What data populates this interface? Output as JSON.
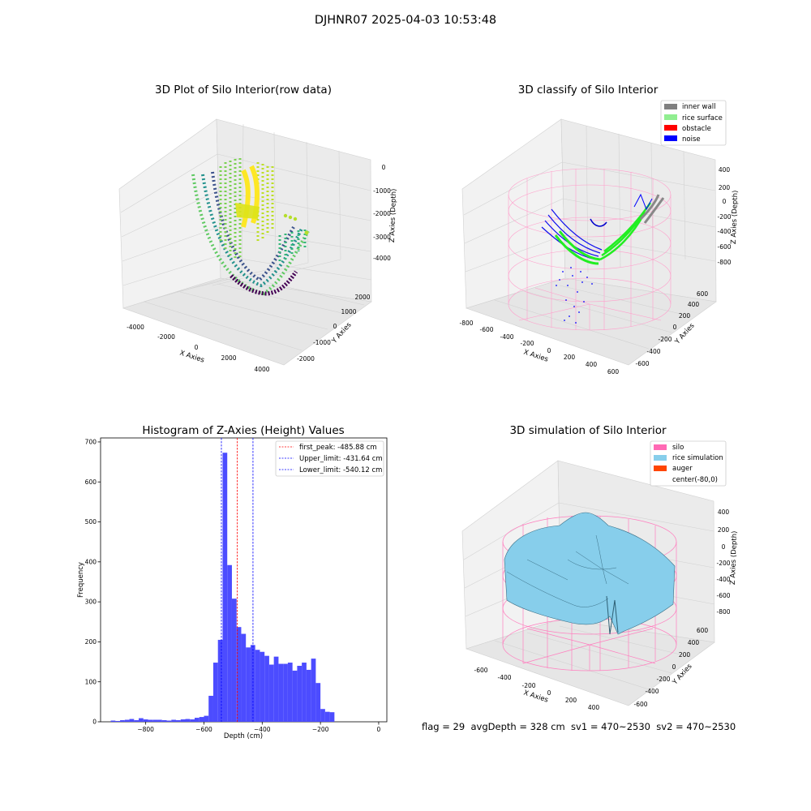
{
  "suptitle": "DJHNR07 2025-04-03 10:53:48",
  "panel_raw": {
    "title": "3D Plot of Silo Interior(row data)",
    "xlabel": "X Axies",
    "ylabel": "Y Axies",
    "zlabel": "Z Axies (Depth)",
    "x_ticks": [
      "-4000",
      "-2000",
      "0",
      "2000",
      "4000"
    ],
    "y_ticks": [
      "-2000",
      "-1000",
      "0",
      "1000",
      "2000"
    ],
    "z_ticks": [
      "0",
      "-1000",
      "-2000",
      "-3000",
      "-4000"
    ]
  },
  "panel_classify": {
    "title": "3D classify of Silo Interior",
    "xlabel": "X Axies",
    "ylabel": "Y Axies",
    "zlabel": "Z Axies (Depth)",
    "x_ticks": [
      "-800",
      "-600",
      "-400",
      "-200",
      "0",
      "200",
      "400",
      "600"
    ],
    "y_ticks": [
      "-600",
      "-400",
      "-200",
      "0",
      "200",
      "400",
      "600"
    ],
    "z_ticks": [
      "400",
      "200",
      "0",
      "-200",
      "-400",
      "-600",
      "-800"
    ],
    "legend": [
      {
        "label": "inner wall",
        "color": "#808080"
      },
      {
        "label": "rice surface",
        "color": "#90ee90"
      },
      {
        "label": "obstacle",
        "color": "#ff0000"
      },
      {
        "label": "noise",
        "color": "#0000ff"
      }
    ]
  },
  "panel_sim": {
    "title": "3D simulation of Silo Interior",
    "xlabel": "X Axies",
    "ylabel": "Y Axies",
    "zlabel": "Z Axies (Depth)",
    "x_ticks": [
      "-600",
      "-400",
      "-200",
      "0",
      "200",
      "400"
    ],
    "y_ticks": [
      "-600",
      "-400",
      "-200",
      "0",
      "200",
      "400",
      "600"
    ],
    "z_ticks": [
      "400",
      "200",
      "0",
      "-200",
      "-400",
      "-600",
      "-800"
    ],
    "legend": [
      {
        "label": "silo",
        "color": "#ff69b4"
      },
      {
        "label": "rice simulation",
        "color": "#87ceeb"
      },
      {
        "label": "auger",
        "color": "#ff4500"
      },
      {
        "label": "center(-80,0)",
        "color": "#ffffff"
      }
    ]
  },
  "footer": "flag = 29  avgDepth = 328 cm  sv1 = 470~2530  sv2 = 470~2530",
  "chart_data": {
    "type": "bar",
    "title": "Histogram of Z-Axies (Height) Values",
    "xlabel": "Depth (cm)",
    "ylabel": "Frequency",
    "xlim": [
      -955,
      28
    ],
    "ylim": [
      0,
      710
    ],
    "x_ticks": [
      -800,
      -600,
      -400,
      -200,
      0
    ],
    "y_ticks": [
      0,
      100,
      200,
      300,
      400,
      500,
      600,
      700
    ],
    "bin_width": 16,
    "bin_starts": [
      -920,
      -904,
      -888,
      -872,
      -856,
      -840,
      -824,
      -808,
      -792,
      -776,
      -760,
      -744,
      -728,
      -712,
      -696,
      -680,
      -664,
      -648,
      -632,
      -616,
      -600,
      -584,
      -568,
      -552,
      -536,
      -520,
      -504,
      -488,
      -472,
      -456,
      -440,
      -424,
      -408,
      -392,
      -376,
      -360,
      -344,
      -328,
      -312,
      -296,
      -280,
      -264,
      -248,
      -232,
      -216,
      -200,
      -184,
      -168,
      -152,
      -136,
      -120,
      -104,
      -88,
      -72,
      -56,
      -40,
      -24
    ],
    "values": [
      3,
      2,
      4,
      5,
      7,
      4,
      9,
      6,
      5,
      5,
      5,
      4,
      3,
      5,
      4,
      6,
      7,
      6,
      10,
      12,
      15,
      65,
      148,
      205,
      673,
      392,
      308,
      237,
      220,
      186,
      192,
      180,
      175,
      165,
      143,
      163,
      145,
      145,
      148,
      128,
      140,
      148,
      130,
      158,
      97,
      32,
      25,
      24,
      0,
      0,
      0,
      0,
      0,
      0,
      0,
      0,
      0
    ],
    "vlines": [
      {
        "label": "first_peak: -485.88 cm",
        "x": -485.88,
        "color": "#ff0000"
      },
      {
        "label": "Upper_limit: -431.64 cm",
        "x": -431.64,
        "color": "#0000ff"
      },
      {
        "label": "Lower_limit: -540.12 cm",
        "x": -540.12,
        "color": "#0000ff"
      }
    ],
    "bar_color": "#4c4cff"
  }
}
